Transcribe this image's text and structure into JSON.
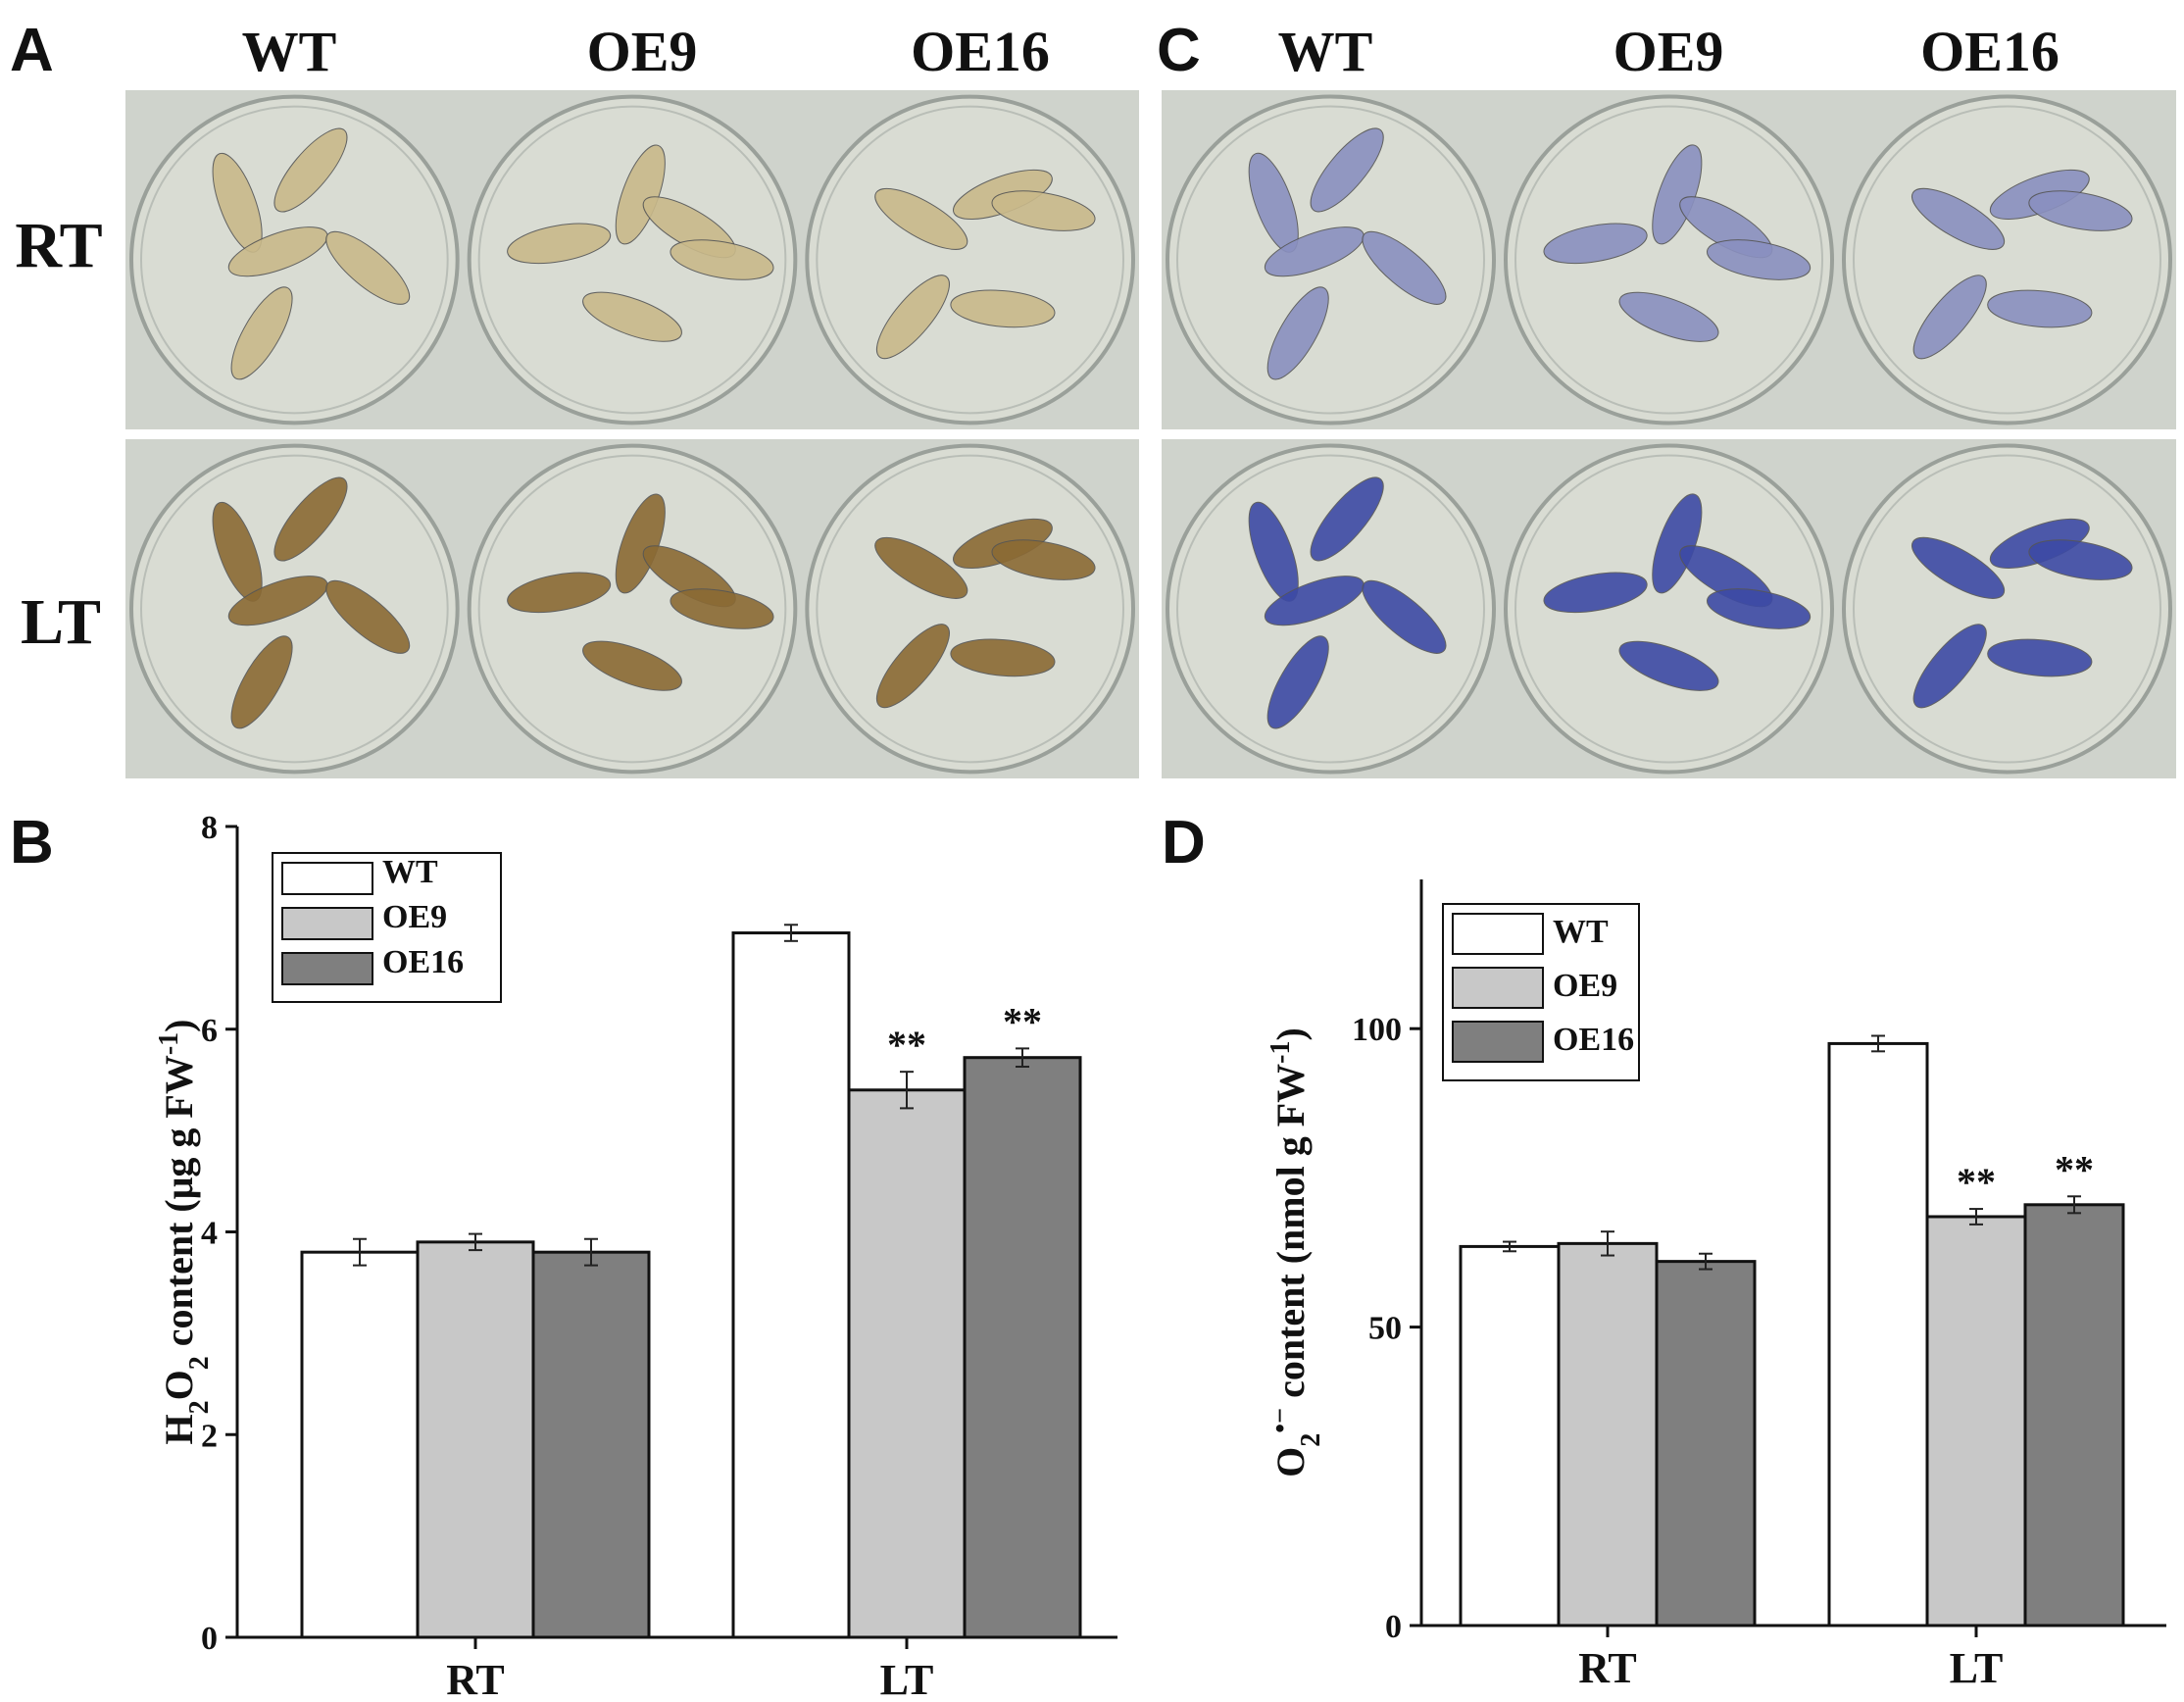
{
  "panels": {
    "A": {
      "letter": "A",
      "columns": [
        "WT",
        "OE9",
        "OE16"
      ],
      "rows": [
        "RT",
        "LT"
      ],
      "stain_color": "#8a6a2e",
      "leaf_intensity_note": ""
    },
    "C": {
      "letter": "C",
      "columns": [
        "WT",
        "OE9",
        "OE16"
      ],
      "stain_color": "#3a4aa0"
    },
    "B": {
      "letter": "B"
    },
    "D": {
      "letter": "D"
    }
  },
  "colors": {
    "WT": "#ffffff",
    "OE9": "#c8c8c8",
    "OE16": "#7f7f7f",
    "plate_bg": "#d9dcd3",
    "panel_bg": "#cfd3cc"
  },
  "chart_data": [
    {
      "type": "bar",
      "panel": "B",
      "categories": [
        "RT",
        "LT"
      ],
      "series": [
        {
          "name": "WT",
          "values": [
            3.8,
            6.95
          ],
          "errors": [
            0.13,
            0.08
          ]
        },
        {
          "name": "OE9",
          "values": [
            3.9,
            5.4
          ],
          "errors": [
            0.08,
            0.18
          ]
        },
        {
          "name": "OE16",
          "values": [
            3.8,
            5.72
          ],
          "errors": [
            0.13,
            0.09
          ]
        }
      ],
      "significance": [
        {
          "category": "LT",
          "series": "OE9",
          "label": "**"
        },
        {
          "category": "LT",
          "series": "OE16",
          "label": "**"
        }
      ],
      "ylabel_parts": [
        "H",
        "2",
        "O",
        "2",
        " content (μg g FW",
        "-1",
        ")"
      ],
      "ylim": [
        0,
        8
      ],
      "yticks": [
        0,
        2,
        4,
        6,
        8
      ],
      "legend": [
        "WT",
        "OE9",
        "OE16"
      ],
      "legend_position": "top-left"
    },
    {
      "type": "bar",
      "panel": "D",
      "categories": [
        "RT",
        "LT"
      ],
      "series": [
        {
          "name": "WT",
          "values": [
            63.5,
            97.5
          ],
          "errors": [
            0.8,
            1.3
          ]
        },
        {
          "name": "OE9",
          "values": [
            64,
            68.5
          ],
          "errors": [
            2,
            1.3
          ]
        },
        {
          "name": "OE16",
          "values": [
            61,
            70.5
          ],
          "errors": [
            1.3,
            1.4
          ]
        }
      ],
      "significance": [
        {
          "category": "LT",
          "series": "OE9",
          "label": "**"
        },
        {
          "category": "LT",
          "series": "OE16",
          "label": "**"
        }
      ],
      "ylabel_parts": [
        "O",
        "2",
        "•−",
        " content (nmol g FW",
        "-1",
        ")"
      ],
      "ylim": [
        0,
        125
      ],
      "yticks": [
        0,
        50,
        100
      ],
      "legend": [
        "WT",
        "OE9",
        "OE16"
      ],
      "legend_position": "top-left"
    }
  ]
}
